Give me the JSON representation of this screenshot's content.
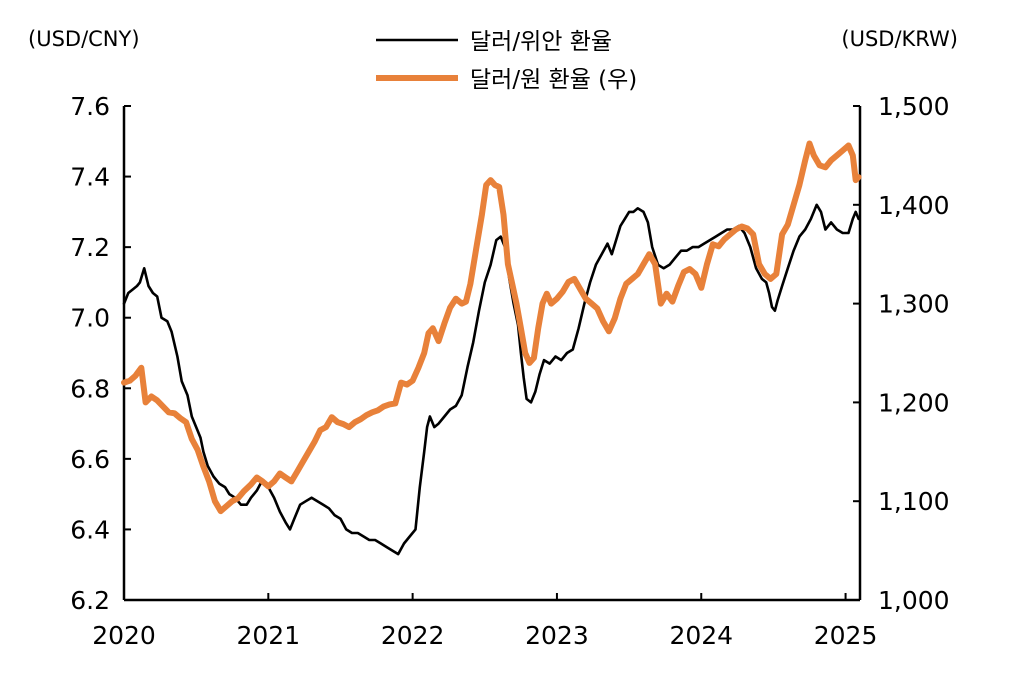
{
  "chart_data": {
    "type": "line",
    "left_axis": {
      "unit": "(USD/CNY)",
      "ylim": [
        6.2,
        7.6
      ],
      "ticks": [
        "6.2",
        "6.4",
        "6.6",
        "6.8",
        "7.0",
        "7.2",
        "7.4",
        "7.6"
      ]
    },
    "right_axis": {
      "unit": "(USD/KRW)",
      "ylim": [
        1000,
        1500
      ],
      "ticks": [
        "1,000",
        "1,100",
        "1,200",
        "1,300",
        "1,400",
        "1,500"
      ]
    },
    "x_axis": {
      "xlim": [
        2020,
        2025.1
      ],
      "ticks": [
        "2020",
        "2021",
        "2022",
        "2023",
        "2024",
        "2025"
      ]
    },
    "legend": {
      "placement": "top-center"
    },
    "series": [
      {
        "name": "달러/위안 환율",
        "axis": "left",
        "color": "#000000",
        "points": [
          [
            2020.0,
            7.04
          ],
          [
            2020.03,
            7.07
          ],
          [
            2020.06,
            7.08
          ],
          [
            2020.09,
            7.09
          ],
          [
            2020.11,
            7.1
          ],
          [
            2020.14,
            7.14
          ],
          [
            2020.17,
            7.09
          ],
          [
            2020.2,
            7.07
          ],
          [
            2020.23,
            7.06
          ],
          [
            2020.26,
            7.0
          ],
          [
            2020.3,
            6.99
          ],
          [
            2020.33,
            6.96
          ],
          [
            2020.37,
            6.89
          ],
          [
            2020.4,
            6.82
          ],
          [
            2020.44,
            6.78
          ],
          [
            2020.47,
            6.72
          ],
          [
            2020.51,
            6.68
          ],
          [
            2020.53,
            6.66
          ],
          [
            2020.55,
            6.62
          ],
          [
            2020.58,
            6.58
          ],
          [
            2020.62,
            6.55
          ],
          [
            2020.66,
            6.53
          ],
          [
            2020.7,
            6.52
          ],
          [
            2020.73,
            6.5
          ],
          [
            2020.77,
            6.49
          ],
          [
            2020.81,
            6.47
          ],
          [
            2020.85,
            6.47
          ],
          [
            2020.88,
            6.49
          ],
          [
            2020.92,
            6.51
          ],
          [
            2020.96,
            6.54
          ],
          [
            2021.0,
            6.52
          ],
          [
            2021.04,
            6.49
          ],
          [
            2021.08,
            6.45
          ],
          [
            2021.12,
            6.42
          ],
          [
            2021.15,
            6.4
          ],
          [
            2021.18,
            6.43
          ],
          [
            2021.22,
            6.47
          ],
          [
            2021.26,
            6.48
          ],
          [
            2021.3,
            6.49
          ],
          [
            2021.34,
            6.48
          ],
          [
            2021.38,
            6.47
          ],
          [
            2021.42,
            6.46
          ],
          [
            2021.46,
            6.44
          ],
          [
            2021.5,
            6.43
          ],
          [
            2021.54,
            6.4
          ],
          [
            2021.58,
            6.39
          ],
          [
            2021.62,
            6.39
          ],
          [
            2021.66,
            6.38
          ],
          [
            2021.7,
            6.37
          ],
          [
            2021.74,
            6.37
          ],
          [
            2021.78,
            6.36
          ],
          [
            2021.82,
            6.35
          ],
          [
            2021.86,
            6.34
          ],
          [
            2021.9,
            6.33
          ],
          [
            2021.94,
            6.36
          ],
          [
            2021.98,
            6.38
          ],
          [
            2022.02,
            6.4
          ],
          [
            2022.05,
            6.52
          ],
          [
            2022.08,
            6.62
          ],
          [
            2022.1,
            6.69
          ],
          [
            2022.12,
            6.72
          ],
          [
            2022.15,
            6.69
          ],
          [
            2022.18,
            6.7
          ],
          [
            2022.22,
            6.72
          ],
          [
            2022.26,
            6.74
          ],
          [
            2022.3,
            6.75
          ],
          [
            2022.34,
            6.78
          ],
          [
            2022.38,
            6.86
          ],
          [
            2022.42,
            6.93
          ],
          [
            2022.46,
            7.02
          ],
          [
            2022.5,
            7.1
          ],
          [
            2022.54,
            7.15
          ],
          [
            2022.58,
            7.22
          ],
          [
            2022.61,
            7.23
          ],
          [
            2022.64,
            7.2
          ],
          [
            2022.67,
            7.11
          ],
          [
            2022.7,
            7.04
          ],
          [
            2022.73,
            6.98
          ],
          [
            2022.75,
            6.9
          ],
          [
            2022.77,
            6.83
          ],
          [
            2022.79,
            6.77
          ],
          [
            2022.82,
            6.76
          ],
          [
            2022.85,
            6.79
          ],
          [
            2022.88,
            6.84
          ],
          [
            2022.91,
            6.88
          ],
          [
            2022.95,
            6.87
          ],
          [
            2022.99,
            6.89
          ],
          [
            2023.03,
            6.88
          ],
          [
            2023.07,
            6.9
          ],
          [
            2023.11,
            6.91
          ],
          [
            2023.15,
            6.97
          ],
          [
            2023.19,
            7.04
          ],
          [
            2023.23,
            7.1
          ],
          [
            2023.27,
            7.15
          ],
          [
            2023.31,
            7.18
          ],
          [
            2023.35,
            7.21
          ],
          [
            2023.38,
            7.18
          ],
          [
            2023.41,
            7.22
          ],
          [
            2023.44,
            7.26
          ],
          [
            2023.47,
            7.28
          ],
          [
            2023.5,
            7.3
          ],
          [
            2023.53,
            7.3
          ],
          [
            2023.56,
            7.31
          ],
          [
            2023.6,
            7.3
          ],
          [
            2023.63,
            7.27
          ],
          [
            2023.66,
            7.2
          ],
          [
            2023.7,
            7.15
          ],
          [
            2023.74,
            7.14
          ],
          [
            2023.78,
            7.15
          ],
          [
            2023.82,
            7.17
          ],
          [
            2023.86,
            7.19
          ],
          [
            2023.9,
            7.19
          ],
          [
            2023.94,
            7.2
          ],
          [
            2023.98,
            7.2
          ],
          [
            2024.02,
            7.21
          ],
          [
            2024.06,
            7.22
          ],
          [
            2024.1,
            7.23
          ],
          [
            2024.14,
            7.24
          ],
          [
            2024.18,
            7.25
          ],
          [
            2024.22,
            7.25
          ],
          [
            2024.26,
            7.26
          ],
          [
            2024.3,
            7.24
          ],
          [
            2024.34,
            7.2
          ],
          [
            2024.38,
            7.14
          ],
          [
            2024.42,
            7.11
          ],
          [
            2024.45,
            7.1
          ],
          [
            2024.47,
            7.07
          ],
          [
            2024.49,
            7.03
          ],
          [
            2024.51,
            7.02
          ],
          [
            2024.53,
            7.05
          ],
          [
            2024.56,
            7.09
          ],
          [
            2024.6,
            7.14
          ],
          [
            2024.64,
            7.19
          ],
          [
            2024.68,
            7.23
          ],
          [
            2024.72,
            7.25
          ],
          [
            2024.76,
            7.28
          ],
          [
            2024.8,
            7.32
          ],
          [
            2024.83,
            7.3
          ],
          [
            2024.86,
            7.25
          ],
          [
            2024.9,
            7.27
          ],
          [
            2024.94,
            7.25
          ],
          [
            2024.98,
            7.24
          ],
          [
            2025.02,
            7.24
          ],
          [
            2025.05,
            7.28
          ],
          [
            2025.07,
            7.3
          ],
          [
            2025.09,
            7.28
          ]
        ]
      },
      {
        "name": "달러/원 환율 (우)",
        "axis": "right",
        "color": "#E8813A",
        "points": [
          [
            2020.0,
            1220
          ],
          [
            2020.04,
            1222
          ],
          [
            2020.08,
            1227
          ],
          [
            2020.12,
            1235
          ],
          [
            2020.15,
            1200
          ],
          [
            2020.19,
            1206
          ],
          [
            2020.23,
            1202
          ],
          [
            2020.27,
            1196
          ],
          [
            2020.31,
            1190
          ],
          [
            2020.35,
            1189
          ],
          [
            2020.39,
            1184
          ],
          [
            2020.43,
            1180
          ],
          [
            2020.47,
            1163
          ],
          [
            2020.51,
            1152
          ],
          [
            2020.55,
            1135
          ],
          [
            2020.59,
            1120
          ],
          [
            2020.63,
            1100
          ],
          [
            2020.67,
            1090
          ],
          [
            2020.71,
            1095
          ],
          [
            2020.75,
            1100
          ],
          [
            2020.79,
            1103
          ],
          [
            2020.83,
            1110
          ],
          [
            2020.88,
            1117
          ],
          [
            2020.92,
            1124
          ],
          [
            2020.96,
            1120
          ],
          [
            2021.0,
            1115
          ],
          [
            2021.04,
            1120
          ],
          [
            2021.08,
            1128
          ],
          [
            2021.12,
            1124
          ],
          [
            2021.16,
            1120
          ],
          [
            2021.2,
            1130
          ],
          [
            2021.24,
            1140
          ],
          [
            2021.28,
            1150
          ],
          [
            2021.32,
            1160
          ],
          [
            2021.36,
            1172
          ],
          [
            2021.4,
            1175
          ],
          [
            2021.44,
            1185
          ],
          [
            2021.48,
            1180
          ],
          [
            2021.52,
            1178
          ],
          [
            2021.56,
            1175
          ],
          [
            2021.6,
            1180
          ],
          [
            2021.64,
            1183
          ],
          [
            2021.68,
            1187
          ],
          [
            2021.72,
            1190
          ],
          [
            2021.76,
            1192
          ],
          [
            2021.8,
            1196
          ],
          [
            2021.84,
            1198
          ],
          [
            2021.88,
            1199
          ],
          [
            2021.92,
            1220
          ],
          [
            2021.96,
            1218
          ],
          [
            2022.0,
            1222
          ],
          [
            2022.04,
            1235
          ],
          [
            2022.08,
            1250
          ],
          [
            2022.11,
            1270
          ],
          [
            2022.14,
            1275
          ],
          [
            2022.18,
            1262
          ],
          [
            2022.22,
            1280
          ],
          [
            2022.26,
            1296
          ],
          [
            2022.3,
            1305
          ],
          [
            2022.34,
            1300
          ],
          [
            2022.37,
            1302
          ],
          [
            2022.4,
            1320
          ],
          [
            2022.44,
            1355
          ],
          [
            2022.48,
            1390
          ],
          [
            2022.51,
            1420
          ],
          [
            2022.54,
            1425
          ],
          [
            2022.57,
            1420
          ],
          [
            2022.6,
            1418
          ],
          [
            2022.63,
            1390
          ],
          [
            2022.66,
            1340
          ],
          [
            2022.69,
            1320
          ],
          [
            2022.72,
            1300
          ],
          [
            2022.75,
            1275
          ],
          [
            2022.78,
            1250
          ],
          [
            2022.81,
            1240
          ],
          [
            2022.84,
            1245
          ],
          [
            2022.87,
            1275
          ],
          [
            2022.9,
            1300
          ],
          [
            2022.93,
            1310
          ],
          [
            2022.96,
            1300
          ],
          [
            2023.0,
            1305
          ],
          [
            2023.04,
            1312
          ],
          [
            2023.08,
            1322
          ],
          [
            2023.12,
            1325
          ],
          [
            2023.16,
            1315
          ],
          [
            2023.2,
            1305
          ],
          [
            2023.24,
            1300
          ],
          [
            2023.28,
            1295
          ],
          [
            2023.32,
            1282
          ],
          [
            2023.36,
            1272
          ],
          [
            2023.4,
            1285
          ],
          [
            2023.44,
            1305
          ],
          [
            2023.48,
            1320
          ],
          [
            2023.52,
            1325
          ],
          [
            2023.56,
            1330
          ],
          [
            2023.6,
            1340
          ],
          [
            2023.64,
            1350
          ],
          [
            2023.68,
            1340
          ],
          [
            2023.72,
            1300
          ],
          [
            2023.76,
            1310
          ],
          [
            2023.8,
            1302
          ],
          [
            2023.84,
            1318
          ],
          [
            2023.88,
            1332
          ],
          [
            2023.92,
            1335
          ],
          [
            2023.96,
            1330
          ],
          [
            2024.0,
            1316
          ],
          [
            2024.04,
            1340
          ],
          [
            2024.08,
            1360
          ],
          [
            2024.12,
            1358
          ],
          [
            2024.16,
            1365
          ],
          [
            2024.2,
            1370
          ],
          [
            2024.24,
            1375
          ],
          [
            2024.28,
            1378
          ],
          [
            2024.32,
            1376
          ],
          [
            2024.36,
            1370
          ],
          [
            2024.4,
            1340
          ],
          [
            2024.44,
            1330
          ],
          [
            2024.48,
            1325
          ],
          [
            2024.52,
            1330
          ],
          [
            2024.56,
            1370
          ],
          [
            2024.6,
            1380
          ],
          [
            2024.64,
            1400
          ],
          [
            2024.68,
            1420
          ],
          [
            2024.72,
            1445
          ],
          [
            2024.75,
            1462
          ],
          [
            2024.78,
            1450
          ],
          [
            2024.82,
            1440
          ],
          [
            2024.86,
            1438
          ],
          [
            2024.9,
            1445
          ],
          [
            2024.94,
            1450
          ],
          [
            2024.98,
            1455
          ],
          [
            2025.02,
            1460
          ],
          [
            2025.05,
            1450
          ],
          [
            2025.07,
            1425
          ],
          [
            2025.09,
            1428
          ]
        ]
      }
    ]
  }
}
